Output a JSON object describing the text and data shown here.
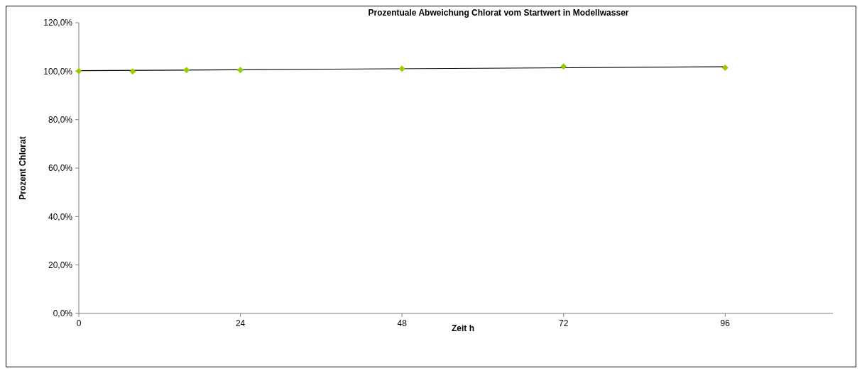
{
  "chart_data": {
    "type": "scatter",
    "title": "Prozentuale Abweichung Chlorat vom Startwert in Modellwasser",
    "xlabel": "Zeit h",
    "ylabel": "Prozent Chlorat",
    "xlim": [
      0,
      112
    ],
    "xticks": [
      0,
      24,
      48,
      72,
      96
    ],
    "ylim": [
      0,
      120
    ],
    "yticks": [
      {
        "value": 0,
        "label": "0,0%"
      },
      {
        "value": 20,
        "label": "20,0%"
      },
      {
        "value": 40,
        "label": "40,0%"
      },
      {
        "value": 60,
        "label": "60,0%"
      },
      {
        "value": 80,
        "label": "80,0%"
      },
      {
        "value": 100,
        "label": "100,0%"
      },
      {
        "value": 120,
        "label": "120,0%"
      }
    ],
    "grid": false,
    "marker": "diamond",
    "series": [
      {
        "color": "#99cc00",
        "x": [
          0,
          8,
          16,
          24,
          48,
          72,
          96
        ],
        "values": [
          100.0,
          99.9,
          100.5,
          100.5,
          101.0,
          101.9,
          101.4
        ]
      },
      {
        "type": "line",
        "color": "#000000",
        "marker": "none",
        "x": [
          0,
          96
        ],
        "values": [
          100.2,
          101.8
        ]
      }
    ]
  }
}
